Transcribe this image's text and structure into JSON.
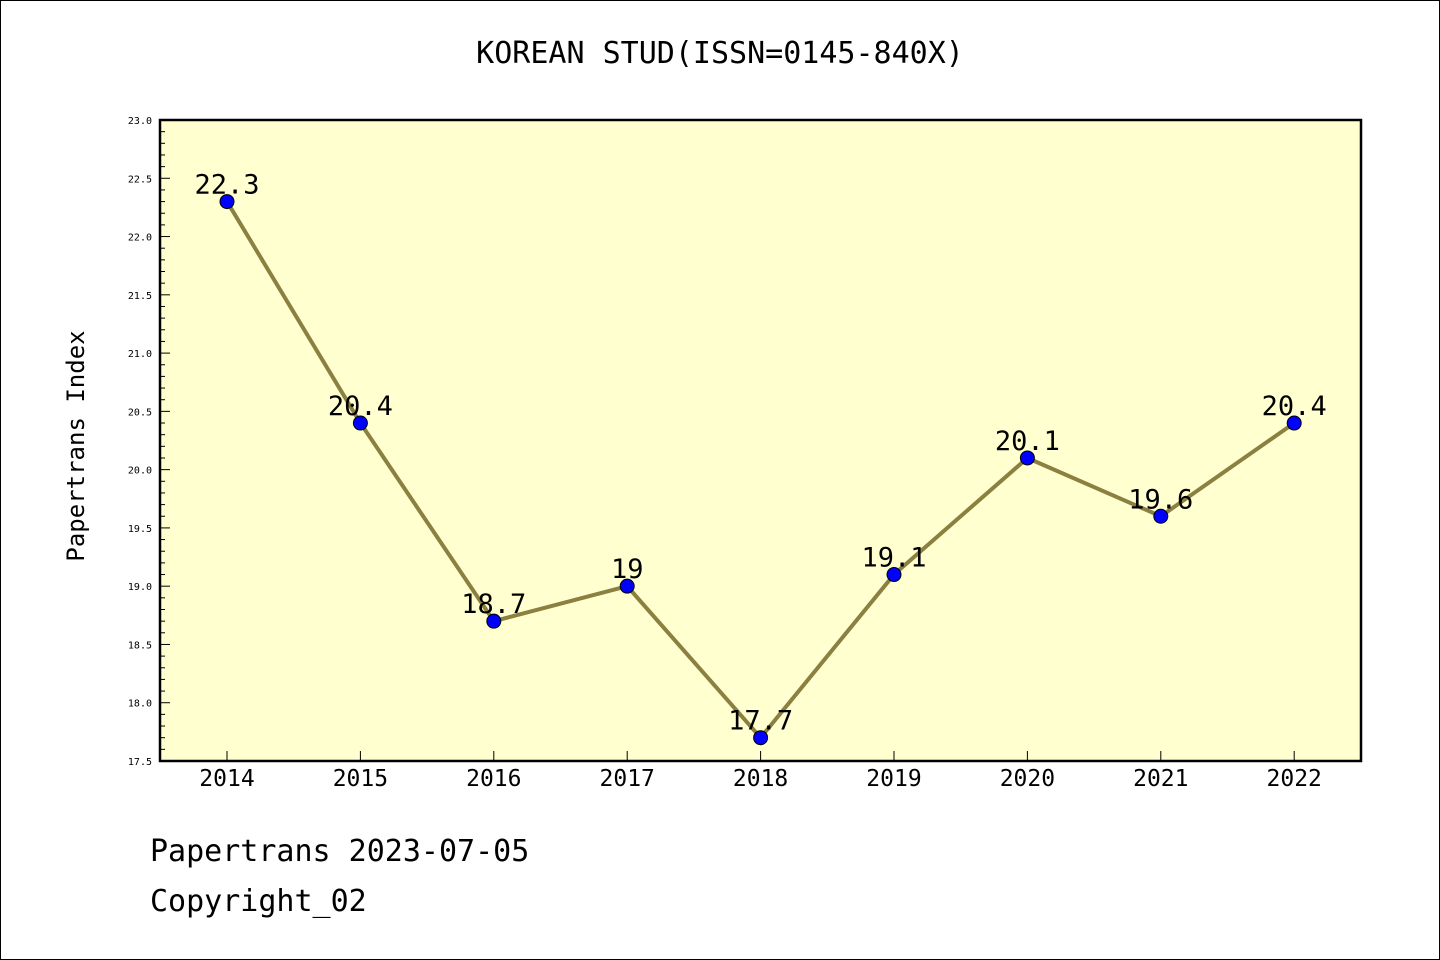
{
  "title": "KOREAN STUD(ISSN=0145-840X)",
  "footer": {
    "line1": "Papertrans 2023-07-05",
    "line2": "Copyright_02"
  },
  "chart_data": {
    "type": "line",
    "title": "KOREAN STUD(ISSN=0145-840X)",
    "xlabel": "",
    "ylabel": "Papertrans Index",
    "categories": [
      "2014",
      "2015",
      "2016",
      "2017",
      "2018",
      "2019",
      "2020",
      "2021",
      "2022"
    ],
    "values": [
      22.3,
      20.4,
      18.7,
      19.0,
      17.7,
      19.1,
      20.1,
      19.6,
      20.4
    ],
    "data_labels": [
      "22.3",
      "20.4",
      "18.7",
      "19",
      "17.7",
      "19.1",
      "20.1",
      "19.6",
      "20.4"
    ],
    "ylim": [
      17.5,
      23.0
    ],
    "yticks": [
      "17.5",
      "18.0",
      "18.5",
      "19.0",
      "19.5",
      "20.0",
      "20.5",
      "21.0",
      "21.5",
      "22.0",
      "22.5",
      "23.0"
    ],
    "grid": false,
    "legend": "none",
    "colors": {
      "plot_background": "#ffffd0",
      "line": "#8b8040",
      "marker": "#0000ff"
    }
  }
}
